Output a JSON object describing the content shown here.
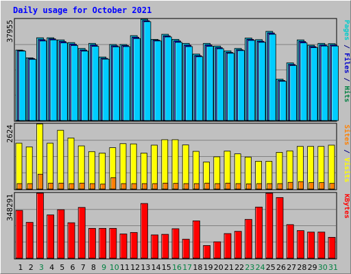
{
  "title": "Daily usage for October 2021",
  "colors": {
    "background": "#c0c0c0",
    "title": "#0000ff",
    "pages": "#00cccc",
    "files": "#0000cc",
    "hits": "#008040",
    "visits": "#ffff00",
    "sites": "#ff8000",
    "kbytes": "#ff0000",
    "weekday_label": "#000000",
    "weekend_label": "#008040"
  },
  "chart_data": [
    {
      "type": "bar",
      "panel": "hits_files_pages",
      "ymax_label": "37955",
      "ymax": 37955,
      "right_label": [
        {
          "text": "Pages",
          "color": "#00cccc"
        },
        {
          "text": " / ",
          "color": "#000080"
        },
        {
          "text": "Files",
          "color": "#0000cc"
        },
        {
          "text": " / ",
          "color": "#000080"
        },
        {
          "text": "Hits",
          "color": "#008040"
        }
      ],
      "categories": [
        "1",
        "2",
        "3",
        "4",
        "5",
        "6",
        "7",
        "8",
        "9",
        "10",
        "11",
        "12",
        "13",
        "14",
        "15",
        "16",
        "17",
        "18",
        "19",
        "20",
        "21",
        "22",
        "23",
        "24",
        "25",
        "26",
        "27",
        "28",
        "29",
        "30",
        "31"
      ],
      "series": [
        {
          "name": "Hits",
          "values": [
            26400,
            23500,
            31000,
            31000,
            30200,
            29200,
            27000,
            28900,
            23800,
            28500,
            28500,
            31800,
            37955,
            30400,
            32300,
            30400,
            28900,
            24900,
            28900,
            27900,
            26100,
            27000,
            30900,
            30300,
            33400,
            15500,
            21600,
            30200,
            28200,
            28900,
            28800
          ]
        },
        {
          "name": "Files",
          "values": [
            26200,
            23200,
            30300,
            30600,
            29600,
            28600,
            26400,
            28300,
            23300,
            28000,
            28100,
            31200,
            37400,
            30100,
            31700,
            29800,
            28200,
            24300,
            28300,
            27300,
            25500,
            26500,
            30400,
            29700,
            32800,
            15000,
            21000,
            29600,
            27700,
            28300,
            28300
          ]
        },
        {
          "name": "Pages",
          "values": [
            26000,
            22900,
            29800,
            30200,
            29100,
            28100,
            26000,
            27800,
            23000,
            27600,
            27700,
            30700,
            37000,
            29800,
            31300,
            29300,
            27700,
            23900,
            27800,
            26900,
            25200,
            26200,
            30000,
            29300,
            32300,
            14700,
            20600,
            29100,
            27300,
            27900,
            27900
          ]
        }
      ]
    },
    {
      "type": "bar",
      "panel": "visits_sites",
      "ymax_label": "2624",
      "ymax": 2624,
      "right_label": [
        {
          "text": "Sites",
          "color": "#ff8000"
        },
        {
          "text": " / ",
          "color": "#000080"
        },
        {
          "text": "Visits",
          "color": "#ffff00"
        }
      ],
      "categories": [
        "1",
        "2",
        "3",
        "4",
        "5",
        "6",
        "7",
        "8",
        "9",
        "10",
        "11",
        "12",
        "13",
        "14",
        "15",
        "16",
        "17",
        "18",
        "19",
        "20",
        "21",
        "22",
        "23",
        "24",
        "25",
        "26",
        "27",
        "28",
        "29",
        "30",
        "31"
      ],
      "series": [
        {
          "name": "Visits",
          "values": [
            1850,
            1700,
            2624,
            1850,
            2370,
            2060,
            1740,
            1510,
            1450,
            1670,
            1830,
            1820,
            1450,
            1770,
            1990,
            1990,
            1780,
            1520,
            1090,
            1300,
            1530,
            1420,
            1290,
            1120,
            1120,
            1480,
            1540,
            1720,
            1720,
            1720,
            1770
          ]
        },
        {
          "name": "Sites",
          "values": [
            220,
            220,
            600,
            240,
            240,
            220,
            240,
            220,
            200,
            460,
            220,
            220,
            220,
            220,
            240,
            230,
            220,
            220,
            240,
            220,
            240,
            220,
            210,
            220,
            220,
            220,
            270,
            300,
            260,
            260,
            230
          ]
        }
      ]
    },
    {
      "type": "bar",
      "panel": "kbytes",
      "ymax_label": "348291",
      "ymax": 348291,
      "right_label": [
        {
          "text": "KBytes",
          "color": "#ff0000"
        }
      ],
      "categories": [
        "1",
        "2",
        "3",
        "4",
        "5",
        "6",
        "7",
        "8",
        "9",
        "10",
        "11",
        "12",
        "13",
        "14",
        "15",
        "16",
        "17",
        "18",
        "19",
        "20",
        "21",
        "22",
        "23",
        "24",
        "25",
        "26",
        "27",
        "28",
        "29",
        "30",
        "31"
      ],
      "series": [
        {
          "name": "KBytes",
          "values": [
            256000,
            192000,
            348291,
            232000,
            260000,
            190000,
            272000,
            160000,
            160000,
            160000,
            130000,
            138000,
            293000,
            125000,
            128000,
            158000,
            102000,
            200000,
            68000,
            88000,
            132000,
            144000,
            208000,
            274000,
            348000,
            325000,
            180000,
            148000,
            140000,
            140000,
            112000
          ]
        }
      ]
    }
  ],
  "x_labels": [
    {
      "text": "1",
      "weekend": false
    },
    {
      "text": "2",
      "weekend": false
    },
    {
      "text": "3",
      "weekend": true
    },
    {
      "text": "4",
      "weekend": false
    },
    {
      "text": "5",
      "weekend": false
    },
    {
      "text": "6",
      "weekend": false
    },
    {
      "text": "7",
      "weekend": false
    },
    {
      "text": "8",
      "weekend": false
    },
    {
      "text": "9",
      "weekend": true
    },
    {
      "text": "10",
      "weekend": true
    },
    {
      "text": "11",
      "weekend": false
    },
    {
      "text": "12",
      "weekend": false
    },
    {
      "text": "13",
      "weekend": false
    },
    {
      "text": "14",
      "weekend": false
    },
    {
      "text": "15",
      "weekend": false
    },
    {
      "text": "16",
      "weekend": true
    },
    {
      "text": "17",
      "weekend": true
    },
    {
      "text": "18",
      "weekend": false
    },
    {
      "text": "19",
      "weekend": false
    },
    {
      "text": "20",
      "weekend": false
    },
    {
      "text": "21",
      "weekend": false
    },
    {
      "text": "22",
      "weekend": false
    },
    {
      "text": "23",
      "weekend": true
    },
    {
      "text": "24",
      "weekend": true
    },
    {
      "text": "25",
      "weekend": false
    },
    {
      "text": "26",
      "weekend": false
    },
    {
      "text": "27",
      "weekend": false
    },
    {
      "text": "28",
      "weekend": false
    },
    {
      "text": "29",
      "weekend": false
    },
    {
      "text": "30",
      "weekend": true
    },
    {
      "text": "31",
      "weekend": true
    }
  ]
}
